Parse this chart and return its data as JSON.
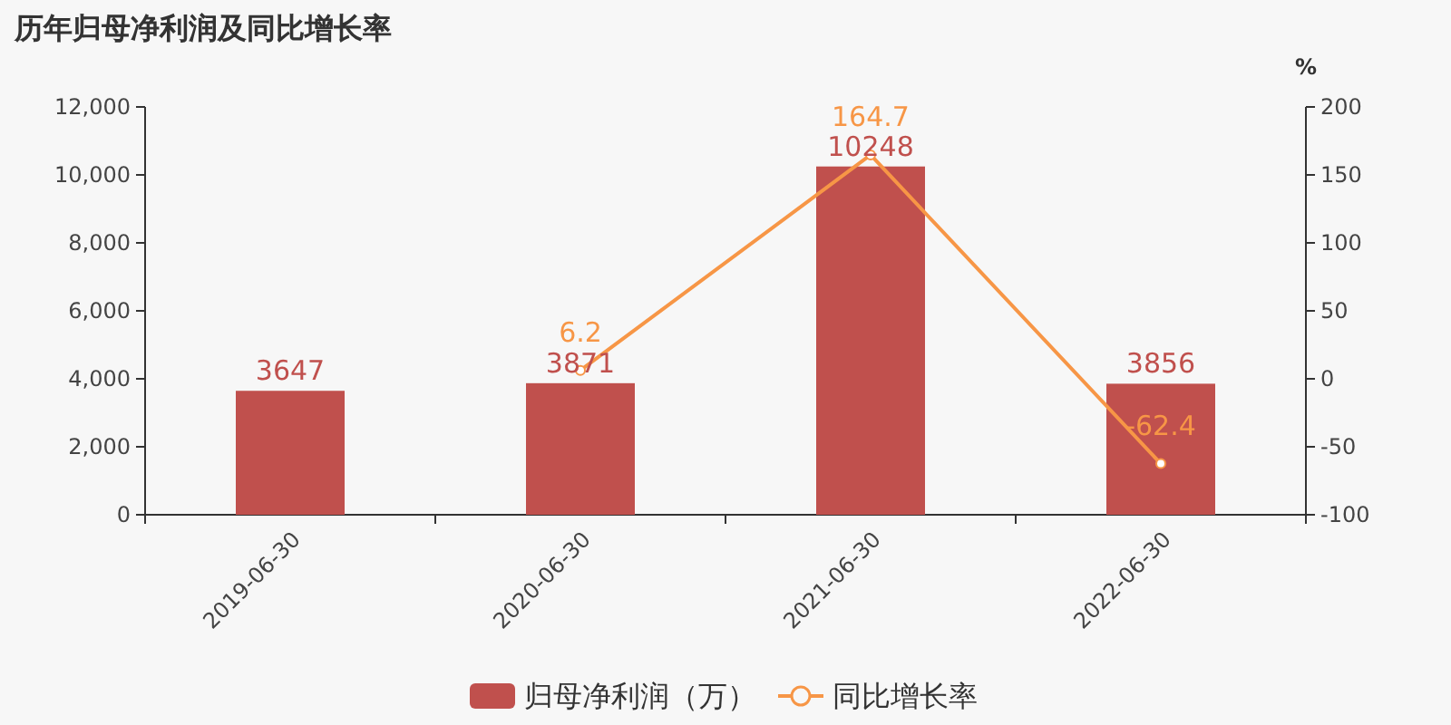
{
  "chart_data": {
    "type": "bar",
    "title": "历年归母净利润及同比增长率",
    "categories": [
      "2019-06-30",
      "2020-06-30",
      "2021-06-30",
      "2022-06-30"
    ],
    "series": [
      {
        "name": "归母净利润（万）",
        "color": "#c0504d",
        "values": [
          3647,
          3871,
          10248,
          3856
        ]
      },
      {
        "name": "同比增长率",
        "type": "line",
        "axis": "y2",
        "color": "#f79646",
        "values": [
          null,
          6.2,
          164.7,
          -62.4
        ]
      }
    ],
    "ylim": [
      0,
      12000
    ],
    "yticks": [
      0,
      {
        "value": 2000,
        "label": "2,000"
      },
      {
        "value": 4000,
        "label": "4,000"
      },
      {
        "value": 6000,
        "label": "6,000"
      },
      {
        "value": 8000,
        "label": "8,000"
      },
      {
        "value": 10000,
        "label": "10,000"
      },
      {
        "value": 12000,
        "label": "12,000"
      }
    ],
    "y2label": "%",
    "y2lim": [
      -100,
      200
    ],
    "y2ticks": [
      -100,
      -50,
      0,
      50,
      100,
      150,
      200
    ],
    "data_labels": true,
    "legend": "bottom",
    "marker": "circle"
  }
}
